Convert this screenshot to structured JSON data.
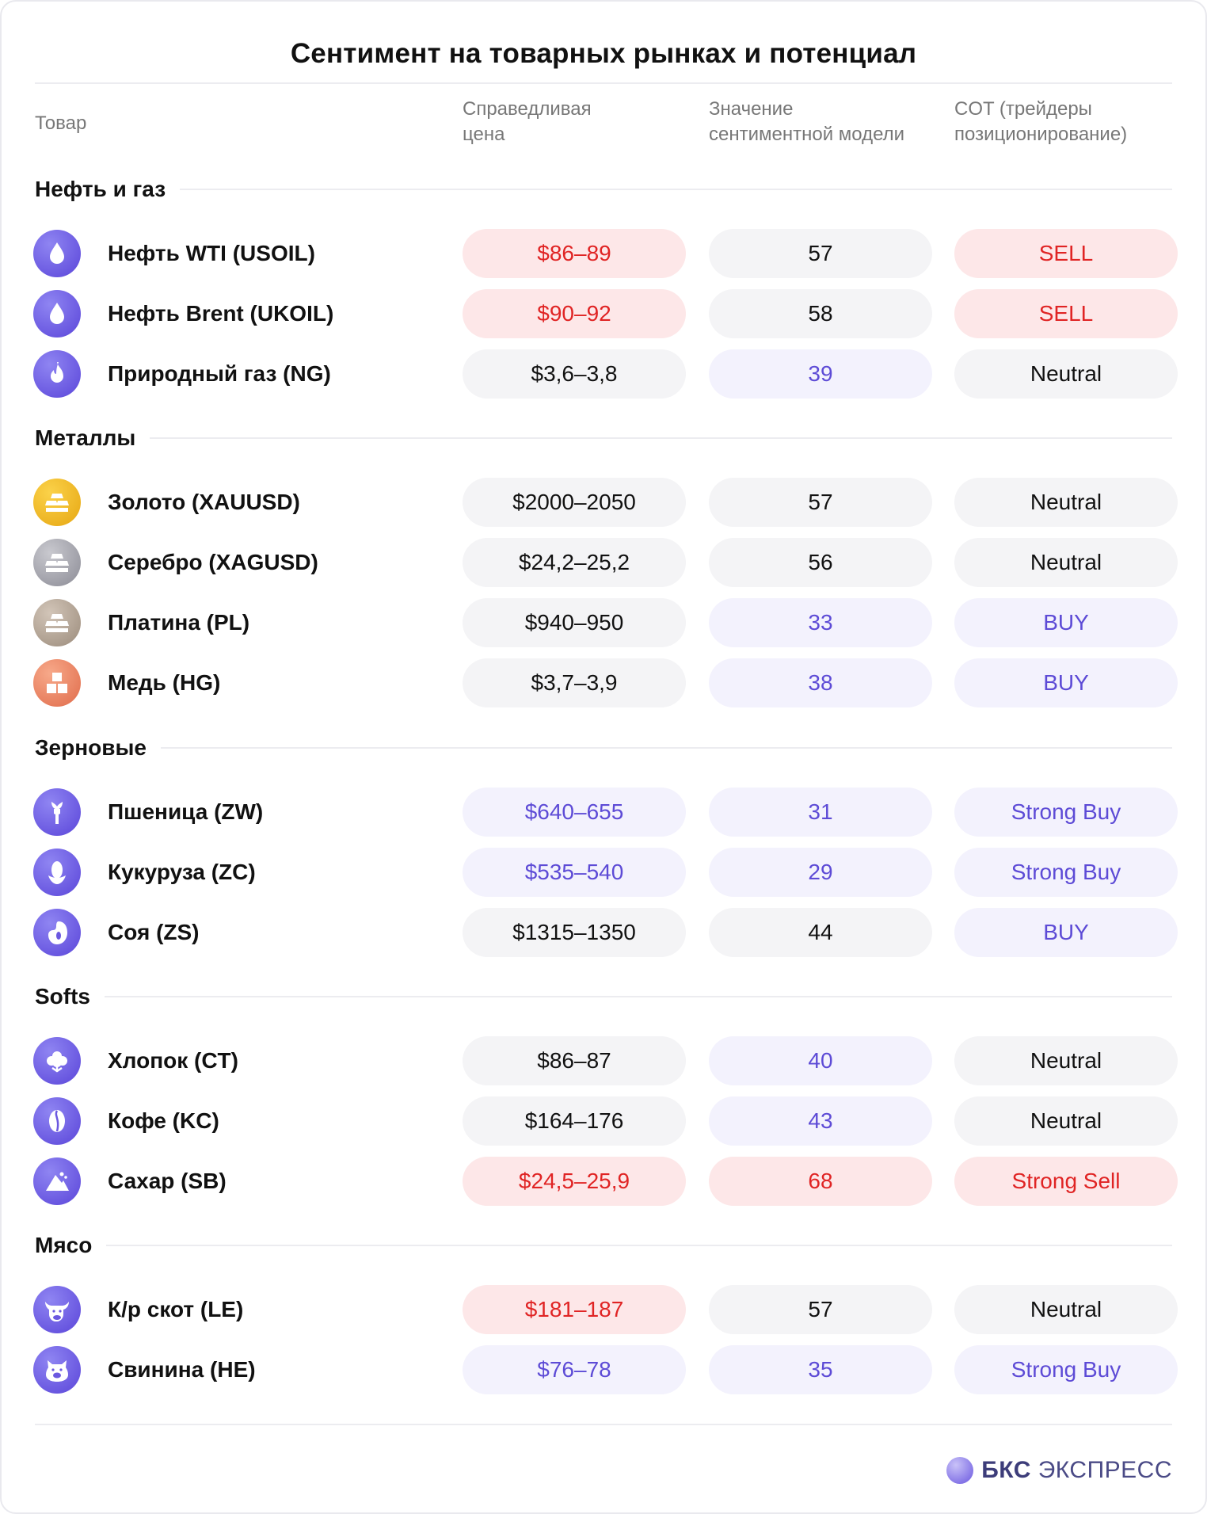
{
  "title": "Сентимент на товарных рынках и потенциал",
  "columns": {
    "product": "Товар",
    "fair_price": [
      "Справедливая",
      "цена"
    ],
    "sentiment": [
      "Значение",
      "сентиментной модели"
    ],
    "cot": [
      "COT (трейдеры",
      "позиционирование)"
    ]
  },
  "colors": {
    "red": "#e02424",
    "red_bg": "#fde7e8",
    "blue": "#5d4bd6",
    "blue_bg": "#f3f2fd",
    "neutral_bg": "#f4f4f6",
    "icon_purple": "#6b58e0"
  },
  "groups": [
    {
      "label": "Нефть и газ",
      "rows": [
        {
          "icon": "oil-drop-icon",
          "name": "Нефть WTI (USOIL)",
          "price": "$86–89",
          "price_tone": "red",
          "score": "57",
          "score_tone": "neutral",
          "cot": "SELL",
          "cot_tone": "red"
        },
        {
          "icon": "oil-drop-icon",
          "name": "Нефть Brent (UKOIL)",
          "price": "$90–92",
          "price_tone": "red",
          "score": "58",
          "score_tone": "neutral",
          "cot": "SELL",
          "cot_tone": "red"
        },
        {
          "icon": "flame-icon",
          "name": "Природный газ (NG)",
          "price": "$3,6–3,8",
          "price_tone": "neutral",
          "score": "39",
          "score_tone": "blue",
          "cot": "Neutral",
          "cot_tone": "neutral"
        }
      ]
    },
    {
      "label": "Металлы",
      "rows": [
        {
          "icon": "gold-bars-icon",
          "name": "Золото  (XAUUSD)",
          "price": "$2000–2050",
          "price_tone": "neutral",
          "score": "57",
          "score_tone": "neutral",
          "cot": "Neutral",
          "cot_tone": "neutral"
        },
        {
          "icon": "silver-bars-icon",
          "name": "Серебро  (XAGUSD)",
          "price": "$24,2–25,2",
          "price_tone": "neutral",
          "score": "56",
          "score_tone": "neutral",
          "cot": "Neutral",
          "cot_tone": "neutral"
        },
        {
          "icon": "platinum-bars-icon",
          "name": "Платина (PL)",
          "price": "$940–950",
          "price_tone": "neutral",
          "score": "33",
          "score_tone": "blue",
          "cot": "BUY",
          "cot_tone": "blue"
        },
        {
          "icon": "copper-blocks-icon",
          "name": "Медь (HG)",
          "price": "$3,7–3,9",
          "price_tone": "neutral",
          "score": "38",
          "score_tone": "blue",
          "cot": "BUY",
          "cot_tone": "blue"
        }
      ]
    },
    {
      "label": "Зерновые",
      "rows": [
        {
          "icon": "wheat-icon",
          "name": "Пшеница (ZW)",
          "price": "$640–655",
          "price_tone": "blue",
          "score": "31",
          "score_tone": "blue",
          "cot": "Strong Buy",
          "cot_tone": "blue"
        },
        {
          "icon": "corn-icon",
          "name": "Кукуруза (ZC)",
          "price": "$535–540",
          "price_tone": "blue",
          "score": "29",
          "score_tone": "blue",
          "cot": "Strong Buy",
          "cot_tone": "blue"
        },
        {
          "icon": "soybean-icon",
          "name": "Соя (ZS)",
          "price": "$1315–1350",
          "price_tone": "neutral",
          "score": "44",
          "score_tone": "neutral",
          "cot": "BUY",
          "cot_tone": "blue"
        }
      ]
    },
    {
      "label": "Softs",
      "rows": [
        {
          "icon": "cotton-icon",
          "name": "Хлопок (CT)",
          "price": "$86–87",
          "price_tone": "neutral",
          "score": "40",
          "score_tone": "blue",
          "cot": "Neutral",
          "cot_tone": "neutral"
        },
        {
          "icon": "coffee-bean-icon",
          "name": "Кофе (KC)",
          "price": "$164–176",
          "price_tone": "neutral",
          "score": "43",
          "score_tone": "blue",
          "cot": "Neutral",
          "cot_tone": "neutral"
        },
        {
          "icon": "sugar-pile-icon",
          "name": "Сахар (SB)",
          "price": "$24,5–25,9",
          "price_tone": "red",
          "score": "68",
          "score_tone": "red",
          "cot": "Strong Sell",
          "cot_tone": "red"
        }
      ]
    },
    {
      "label": "Мясо",
      "rows": [
        {
          "icon": "cow-icon",
          "name": "К/р скот (LE)",
          "price": "$181–187",
          "price_tone": "red",
          "score": "57",
          "score_tone": "neutral",
          "cot": "Neutral",
          "cot_tone": "neutral"
        },
        {
          "icon": "pig-icon",
          "name": "Свинина (HE)",
          "price": "$76–78",
          "price_tone": "blue",
          "score": "35",
          "score_tone": "blue",
          "cot": "Strong Buy",
          "cot_tone": "blue"
        }
      ]
    }
  ],
  "brand": {
    "bold": "БКС",
    "regular": " ЭКСПРЕСС"
  }
}
